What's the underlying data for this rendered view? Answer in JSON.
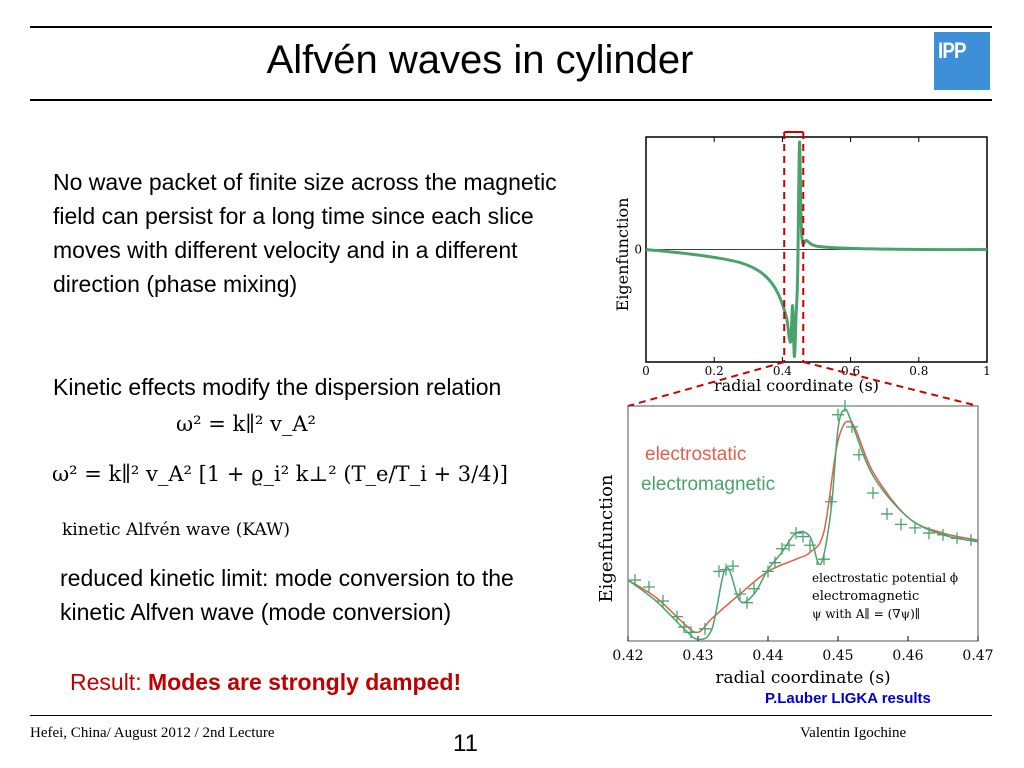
{
  "slide": {
    "title": "Alfvén waves in cylinder",
    "logo_text": "IPP",
    "colors": {
      "accent_red": "#c00000",
      "curve_green": "#4aa36f",
      "curve_red": "#e0604a",
      "logo_blue": "#3d8fd8"
    },
    "para1": "No wave packet of finite size across the magnetic field can persist for a long time since each slice moves with different velocity and in a different direction (phase mixing)",
    "para2": "Kinetic effects modify the dispersion relation",
    "eq1": "ω² = k∥² v_A²",
    "eq2": "ω² = k∥² v_A² [1 + ϱ_i² k⊥² (T_e/T_i + 3/4)]",
    "kaw_label": "kinetic Alfvén wave (KAW)",
    "para3": "reduced kinetic limit: mode conversion to the kinetic Alfven wave (mode conversion)",
    "result_prefix": "Result: ",
    "result_emph": "Modes are strongly damped!",
    "credit": "P.Lauber LIGKA results",
    "footer_left": "Hefei, China/ August 2012 / 2nd Lecture",
    "page_number": "11",
    "footer_right": "Valentin Igochine"
  },
  "chart_data": [
    {
      "type": "line",
      "title": "",
      "xlabel": "radial coordinate (s)",
      "ylabel": "Eigenfunction",
      "xlim": [
        0,
        1
      ],
      "xticks": [
        "0",
        "0.2",
        "0.4",
        "0.6",
        "0.8",
        "1"
      ],
      "yticks": [
        "0"
      ],
      "grid": false,
      "ylim": [
        -1,
        1
      ],
      "series": [
        {
          "name": "",
          "color": "#4aa36f",
          "x": [
            0,
            0.1,
            0.2,
            0.28,
            0.34,
            0.38,
            0.41,
            0.42,
            0.425,
            0.43,
            0.435,
            0.44,
            0.445,
            0.45,
            0.455,
            0.46,
            0.47,
            0.5,
            0.6,
            0.8,
            1.0
          ],
          "y": [
            0.0,
            -0.03,
            -0.07,
            -0.12,
            -0.21,
            -0.35,
            -0.58,
            -0.78,
            -0.8,
            -0.5,
            -0.95,
            -0.6,
            -0.2,
            0.95,
            0.25,
            0.05,
            0.08,
            0.03,
            0.01,
            0.0,
            0.0
          ]
        }
      ],
      "highlight_range": [
        0.42,
        0.47
      ]
    },
    {
      "type": "line",
      "title": "",
      "xlabel": "radial coordinate (s)",
      "ylabel": "Eigenfunction",
      "xlim": [
        0.42,
        0.47
      ],
      "xticks": [
        "0.42",
        "0.43",
        "0.44",
        "0.45",
        "0.46",
        "0.47"
      ],
      "ylim": [
        -0.35,
        1.0
      ],
      "grid": false,
      "legend_text": [
        "electrostatic",
        "electromagnetic"
      ],
      "annotation_lines": [
        "electrostatic potential ϕ",
        "electromagnetic",
        "ψ with A∥ = (∇ψ)∥"
      ],
      "series": [
        {
          "name": "electrostatic",
          "color": "#e0604a",
          "x": [
            0.42,
            0.424,
            0.428,
            0.43,
            0.432,
            0.436,
            0.44,
            0.444,
            0.446,
            0.448,
            0.45,
            0.452,
            0.455,
            0.46,
            0.465,
            0.47
          ],
          "y": [
            0.0,
            -0.1,
            -0.25,
            -0.3,
            -0.22,
            -0.08,
            0.05,
            0.12,
            0.16,
            0.28,
            0.8,
            0.9,
            0.62,
            0.36,
            0.27,
            0.23
          ]
        },
        {
          "name": "electromagnetic",
          "color": "#4aa36f",
          "x": [
            0.42,
            0.424,
            0.428,
            0.43,
            0.432,
            0.434,
            0.436,
            0.438,
            0.44,
            0.442,
            0.444,
            0.446,
            0.4475,
            0.449,
            0.45,
            0.451,
            0.452,
            0.455,
            0.46,
            0.465,
            0.47
          ],
          "y": [
            0.0,
            -0.12,
            -0.28,
            -0.34,
            -0.28,
            0.07,
            -0.12,
            -0.08,
            0.06,
            0.16,
            0.27,
            0.25,
            0.09,
            0.4,
            0.87,
            0.98,
            0.9,
            0.6,
            0.36,
            0.26,
            0.22
          ]
        }
      ],
      "markers": {
        "color": "#4aa36f",
        "x": [
          0.421,
          0.423,
          0.425,
          0.427,
          0.428,
          0.429,
          0.431,
          0.433,
          0.434,
          0.435,
          0.436,
          0.437,
          0.438,
          0.44,
          0.441,
          0.442,
          0.443,
          0.444,
          0.445,
          0.446,
          0.447,
          0.448,
          0.449,
          0.45,
          0.451,
          0.452,
          0.453,
          0.455,
          0.457,
          0.459,
          0.461,
          0.463,
          0.465,
          0.467,
          0.469
        ],
        "y": [
          0.0,
          -0.04,
          -0.12,
          -0.21,
          -0.27,
          -0.3,
          -0.28,
          0.05,
          0.06,
          0.08,
          -0.08,
          -0.13,
          -0.05,
          0.05,
          0.1,
          0.18,
          0.2,
          0.27,
          0.25,
          0.2,
          0.07,
          0.12,
          0.45,
          0.95,
          1.0,
          0.88,
          0.72,
          0.5,
          0.38,
          0.32,
          0.3,
          0.27,
          0.26,
          0.24,
          0.23
        ]
      }
    }
  ]
}
